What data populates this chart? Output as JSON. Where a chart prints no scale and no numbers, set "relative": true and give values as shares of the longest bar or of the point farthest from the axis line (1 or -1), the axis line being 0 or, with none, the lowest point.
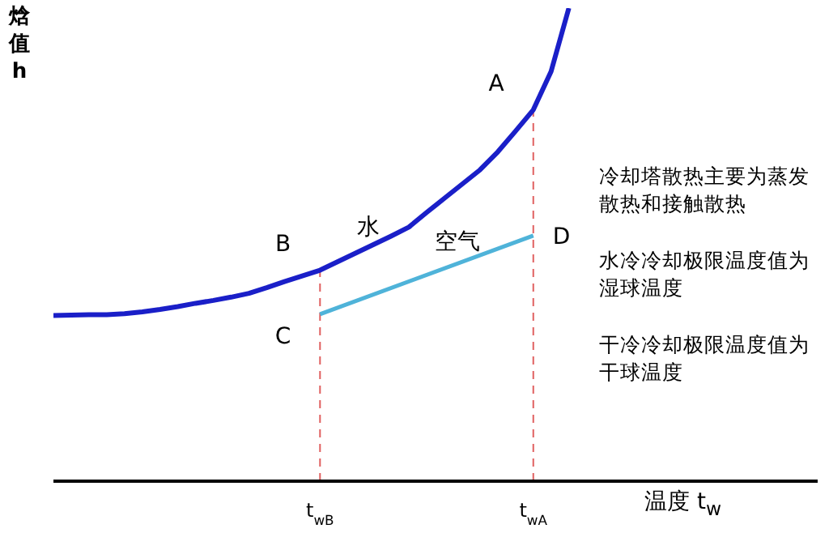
{
  "chart_data": {
    "type": "line",
    "relative": true,
    "xlabel": "温度 t$_{w}$",
    "ylabel": "焓值h",
    "categories": [
      null,
      null,
      null,
      null,
      null,
      null,
      null,
      null,
      null,
      null,
      null,
      null,
      null,
      null,
      null,
      "t$_{wB}$",
      null,
      null,
      null,
      null,
      null,
      null,
      null,
      null,
      null,
      null,
      null,
      "t$_{wA}$",
      null,
      null,
      null,
      null,
      null,
      null,
      null,
      null,
      null,
      null,
      null,
      null,
      null,
      null,
      null,
      null
    ],
    "series": [
      {
        "name": "水",
        "color": "#1a1fc8",
        "values": [
          0.35,
          0.351,
          0.352,
          0.352,
          0.354,
          0.358,
          0.363,
          0.369,
          0.376,
          0.382,
          0.389,
          0.397,
          0.409,
          0.422,
          0.434,
          0.446,
          0.464,
          0.482,
          0.5,
          0.518,
          0.537,
          0.568,
          0.598,
          0.628,
          0.658,
          0.696,
          0.74,
          0.785,
          0.866,
          1,
          null,
          null,
          null,
          null,
          null,
          null,
          null,
          null,
          null,
          null,
          null,
          null,
          null,
          null
        ]
      },
      {
        "name": "空气",
        "color": "#4fb3d9",
        "values": [
          null,
          null,
          null,
          null,
          null,
          null,
          null,
          null,
          null,
          null,
          null,
          null,
          null,
          null,
          null,
          0.353,
          null,
          null,
          null,
          null,
          null,
          null,
          null,
          null,
          null,
          null,
          null,
          0.519,
          null,
          null,
          null,
          null,
          null,
          null,
          null,
          null,
          null,
          null,
          null,
          null,
          null,
          null,
          null,
          null
        ]
      }
    ],
    "ref_lines": [
      {
        "axis": "x",
        "value": "t$_{wB}$",
        "color": "#e06060",
        "line_style": "dashed"
      },
      {
        "axis": "x",
        "value": "t$_{wA}$",
        "color": "#e06060",
        "line_style": "dashed"
      }
    ],
    "annotations": [
      {
        "text": "A",
        "x": "t$_{wA}$",
        "y": 0.785
      },
      {
        "text": "B",
        "x": "t$_{wB}$",
        "y": 0.446
      },
      {
        "text": "C",
        "x": "t$_{wB}$",
        "y": 0.353
      },
      {
        "text": "D",
        "x": "t$_{wA}$",
        "y": 0.519
      },
      "冷却塔散热主要为蒸发散热和接触散热",
      "水冷冷却极限温度值为湿球温度",
      "干冷冷却极限温度值为干球温度"
    ],
    "legend": false,
    "grid": false,
    "marker": "none",
    "line_style": "solid"
  }
}
